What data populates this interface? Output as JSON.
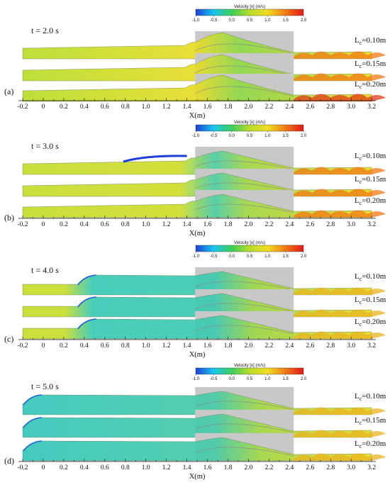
{
  "colorbar": {
    "title": "Velocity [x] (m/s)",
    "ticks": [
      "-1.0",
      "-0.5",
      "0.0",
      "0.5",
      "1.0",
      "1.5",
      "2.0"
    ]
  },
  "axis": {
    "xlabel": "X(m)",
    "ticks": [
      "-0.2",
      "0",
      "0.2",
      "0.4",
      "0.6",
      "0.8",
      "1.0",
      "1.2",
      "1.4",
      "1.6",
      "1.8",
      "2.0",
      "2.2",
      "2.4",
      "2.6",
      "2.8",
      "3.0",
      "3.2"
    ]
  },
  "panels": [
    {
      "letter": "(a)",
      "time": "t = 2.0 s",
      "cases": [
        {
          "label": "L",
          "sub": "c",
          "value": "=0.10m"
        },
        {
          "label": "L",
          "sub": "c",
          "value": "=0.15m"
        },
        {
          "label": "L",
          "sub": "c",
          "value": "=0.20m"
        }
      ]
    },
    {
      "letter": "(b)",
      "time": "t = 3.0 s",
      "cases": [
        {
          "label": "L",
          "sub": "c",
          "value": "=0.10m"
        },
        {
          "label": "L",
          "sub": "c",
          "value": "=0.15m"
        },
        {
          "label": "L",
          "sub": "c",
          "value": "=0.20m"
        }
      ]
    },
    {
      "letter": "(c)",
      "time": "t = 4.0 s",
      "cases": [
        {
          "label": "L",
          "sub": "c",
          "value": "=0.10m"
        },
        {
          "label": "L",
          "sub": "c",
          "value": "=0.15m"
        },
        {
          "label": "L",
          "sub": "c",
          "value": "=0.20m"
        }
      ]
    },
    {
      "letter": "(d)",
      "time": "t = 5.0 s",
      "cases": [
        {
          "label": "L",
          "sub": "c",
          "value": "=0.10m"
        },
        {
          "label": "L",
          "sub": "c",
          "value": "=0.15m"
        },
        {
          "label": "L",
          "sub": "c",
          "value": "=0.20m"
        }
      ]
    }
  ],
  "colors": {
    "structure": "#c8c8c8",
    "colormap": [
      "#1f3fd6",
      "#19c6ee",
      "#3ccd5a",
      "#b7dc2a",
      "#f0dc22",
      "#f07a14",
      "#e01818"
    ]
  }
}
